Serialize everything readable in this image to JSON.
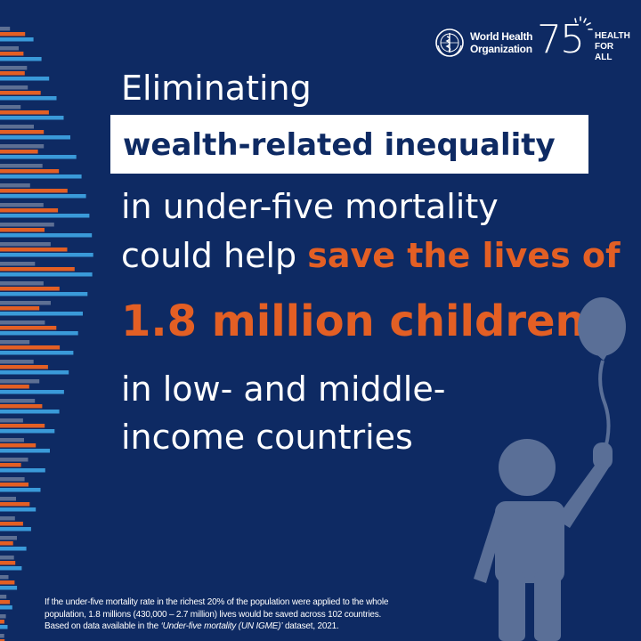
{
  "header": {
    "org_name": "World Health\nOrganization",
    "anniversary_number": "75",
    "anniversary_tagline": "HEALTH\nFOR ALL"
  },
  "headline": {
    "line1": "Eliminating",
    "highlight": "wealth-related inequality",
    "line3": "in under-five mortality",
    "line4_prefix": "could help ",
    "line4_accent": "save the lives of",
    "big_stat": "1.8 million children",
    "line6": "in low- and middle-",
    "line7": "income countries"
  },
  "footnote": {
    "line1": "If the under-five mortality rate in the richest 20% of the population were applied to the whole",
    "line2": "population, 1.8 millions (430,000 – 2.7 million) lives would be saved across 102 countries.",
    "line3_prefix": "Based on data available in the ",
    "source_title": "‘Under-five mortality (UN IGME)’",
    "line3_suffix": " dataset, 2021."
  },
  "colors": {
    "background": "#0e2a63",
    "accent_orange": "#e35f24",
    "bar_blue": "#3a9ad9",
    "bar_gray": "#5d6f93",
    "figure": "#5a6f97"
  },
  "icons": {
    "emblem": "who-emblem-icon",
    "sunburst": "sunburst-icon",
    "figure": "child-with-balloon-icon"
  }
}
